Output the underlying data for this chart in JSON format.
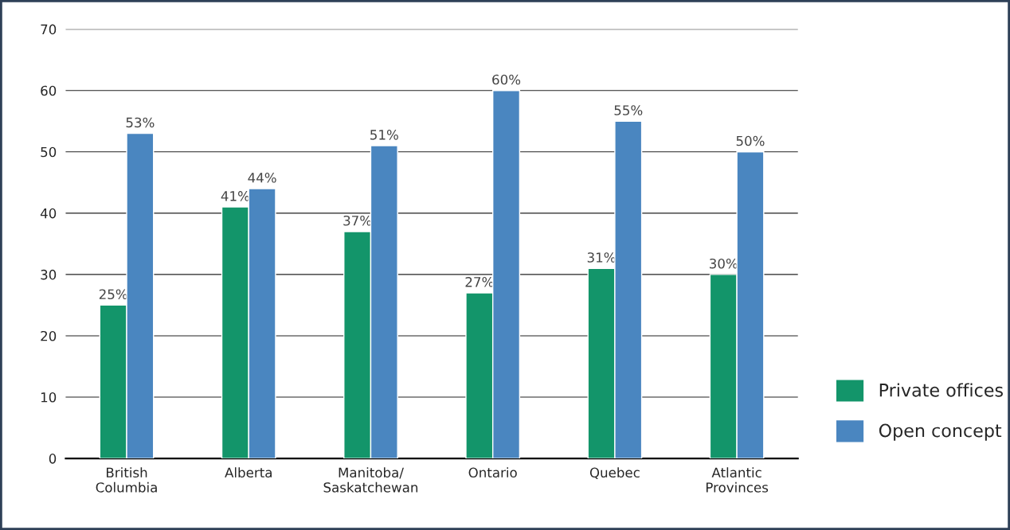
{
  "chart_data": {
    "type": "bar",
    "categories": [
      "British\nColumbia",
      "Alberta",
      "Manitoba/\nSaskatchewan",
      "Ontario",
      "Quebec",
      "Atlantic\nProvinces"
    ],
    "series": [
      {
        "name": "Private offices",
        "color": "#13956a",
        "values": [
          25,
          41,
          37,
          27,
          31,
          30
        ],
        "value_labels": [
          "25%",
          "41%",
          "37%",
          "27%",
          "31%",
          "30%"
        ]
      },
      {
        "name": "Open concept",
        "color": "#4a86c0",
        "values": [
          53,
          44,
          51,
          60,
          55,
          50
        ],
        "value_labels": [
          "53%",
          "44%",
          "51%",
          "60%",
          "55%",
          "50%"
        ]
      }
    ],
    "ylim": [
      0,
      70
    ],
    "yticks": [
      0,
      10,
      20,
      30,
      40,
      50,
      60,
      70
    ],
    "grid": "y",
    "legend": "bottom right"
  }
}
